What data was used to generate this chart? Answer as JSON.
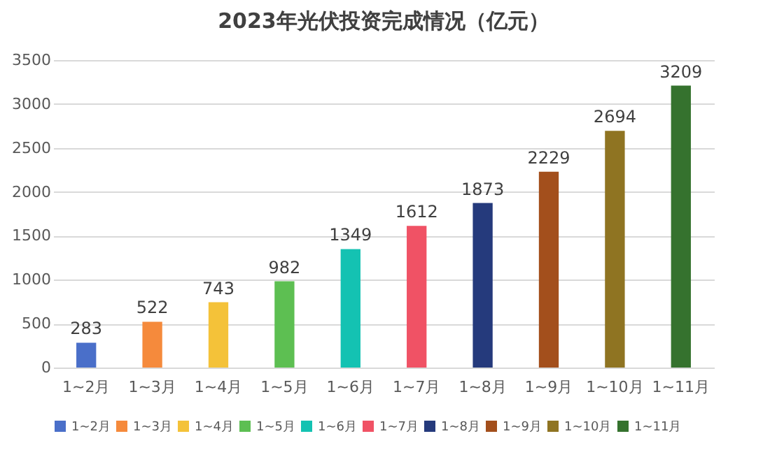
{
  "chart_data": {
    "type": "bar",
    "title": "2023年光伏投资完成情况（亿元）",
    "categories": [
      "1~2月",
      "1~3月",
      "1~4月",
      "1~5月",
      "1~6月",
      "1~7月",
      "1~8月",
      "1~9月",
      "1~10月",
      "1~11月"
    ],
    "series": [
      {
        "name": "1~2月",
        "color": "#4a6fc9",
        "values": [
          283,
          null,
          null,
          null,
          null,
          null,
          null,
          null,
          null,
          null
        ]
      },
      {
        "name": "1~3月",
        "color": "#f58a3c",
        "values": [
          null,
          522,
          null,
          null,
          null,
          null,
          null,
          null,
          null,
          null
        ]
      },
      {
        "name": "1~4月",
        "color": "#f4c239",
        "values": [
          null,
          null,
          743,
          null,
          null,
          null,
          null,
          null,
          null,
          null
        ]
      },
      {
        "name": "1~5月",
        "color": "#5dbf52",
        "values": [
          null,
          null,
          null,
          982,
          null,
          null,
          null,
          null,
          null,
          null
        ]
      },
      {
        "name": "1~6月",
        "color": "#14c2b2",
        "values": [
          null,
          null,
          null,
          null,
          1349,
          null,
          null,
          null,
          null,
          null
        ]
      },
      {
        "name": "1~7月",
        "color": "#f05265",
        "values": [
          null,
          null,
          null,
          null,
          null,
          1612,
          null,
          null,
          null,
          null
        ]
      },
      {
        "name": "1~8月",
        "color": "#253a7c",
        "values": [
          null,
          null,
          null,
          null,
          null,
          null,
          1873,
          null,
          null,
          null
        ]
      },
      {
        "name": "1~9月",
        "color": "#a34f1c",
        "values": [
          null,
          null,
          null,
          null,
          null,
          null,
          null,
          2229,
          null,
          null
        ]
      },
      {
        "name": "1~10月",
        "color": "#8f7422",
        "values": [
          null,
          null,
          null,
          null,
          null,
          null,
          null,
          null,
          2694,
          null
        ]
      },
      {
        "name": "1~11月",
        "color": "#35722e",
        "values": [
          null,
          null,
          null,
          null,
          null,
          null,
          null,
          null,
          null,
          3209
        ]
      }
    ],
    "ylim": [
      0,
      3500
    ],
    "yticks": [
      0,
      500,
      1000,
      1500,
      2000,
      2500,
      3000,
      3500
    ],
    "grid": true,
    "data_labels": true,
    "legend": "bottom"
  }
}
